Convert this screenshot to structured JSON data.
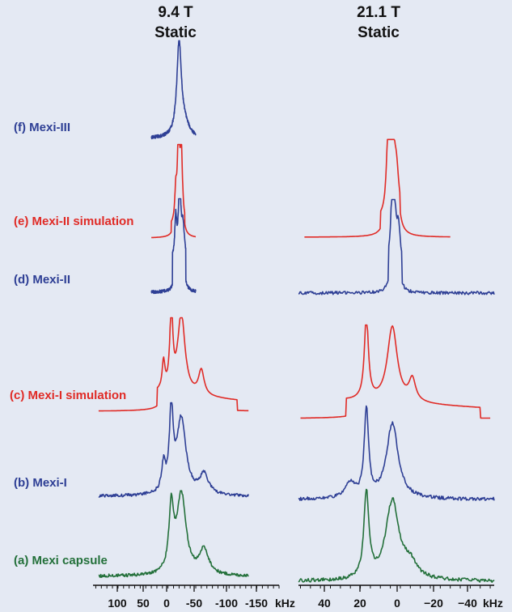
{
  "column_titles": [
    {
      "line1": "9.4 T",
      "line2": "Static"
    },
    {
      "line1": "21.1 T",
      "line2": "Static"
    }
  ],
  "axis_unit": "kHz",
  "colors": {
    "blue": "#2e3f95",
    "red": "#e02b26",
    "green": "#23703a",
    "background": "#e4e9f3"
  },
  "chart_data": [
    {
      "type": "line",
      "title": "9.4 T Static",
      "xlabel": "kHz",
      "x_reversed": true,
      "xlim": [
        145,
        -190
      ],
      "xticks": [
        100,
        50,
        0,
        -50,
        -100,
        -150
      ],
      "tick_labels": [
        "100",
        "50",
        "0",
        "-50",
        "-100",
        "-150"
      ],
      "series": [
        {
          "name": "(f) Mexi-III",
          "color": "blue",
          "x_range": [
            40,
            -40
          ],
          "peaks": [
            {
              "center": -10,
              "height": 1.0,
              "width": 5
            }
          ],
          "shoulders": [
            {
              "center": -20,
              "height": 0.12,
              "width": 10
            }
          ]
        },
        {
          "name": "(e) Mexi-II simulation",
          "color": "red",
          "x_range": [
            40,
            -40
          ],
          "plateau": {
            "from": 4,
            "to": -20,
            "height": 0.12
          },
          "peaks": [
            {
              "center": -9,
              "height": 0.98,
              "width": 2.5
            },
            {
              "center": -14,
              "height": 0.78,
              "width": 2.5
            },
            {
              "center": -4,
              "height": 0.32,
              "width": 2
            }
          ]
        },
        {
          "name": "(d) Mexi-II",
          "color": "blue",
          "x_range": [
            40,
            -40
          ],
          "plateau": {
            "from": 2,
            "to": -22,
            "height": 0.35
          },
          "peaks": [
            {
              "center": -11,
              "height": 0.88,
              "width": 2.5
            },
            {
              "center": -4,
              "height": 0.45,
              "width": 2
            },
            {
              "center": -17,
              "height": 0.35,
              "width": 3
            }
          ]
        },
        {
          "name": "(c) Mexi-I simulation",
          "color": "red",
          "x_range": [
            135,
            -135
          ],
          "edges": {
            "left": 30,
            "right": -115
          },
          "peaks": [
            {
              "center": 4,
              "height": 0.95,
              "width": 3
            },
            {
              "center": -14,
              "height": 0.9,
              "width": 8
            },
            {
              "center": 18,
              "height": 0.32,
              "width": 3
            },
            {
              "center": -50,
              "height": 0.28,
              "width": 6
            }
          ]
        },
        {
          "name": "(b) Mexi-I",
          "color": "blue",
          "x_range": [
            135,
            -135
          ],
          "peaks": [
            {
              "center": 4,
              "height": 0.92,
              "width": 4
            },
            {
              "center": -14,
              "height": 0.85,
              "width": 10
            },
            {
              "center": 18,
              "height": 0.3,
              "width": 4
            },
            {
              "center": -55,
              "height": 0.22,
              "width": 10
            }
          ]
        },
        {
          "name": "(a) Mexi capsule",
          "color": "green",
          "x_range": [
            135,
            -135
          ],
          "peaks": [
            {
              "center": 4,
              "height": 0.7,
              "width": 5
            },
            {
              "center": -14,
              "height": 0.9,
              "width": 10
            },
            {
              "center": -55,
              "height": 0.28,
              "width": 10
            }
          ]
        }
      ]
    },
    {
      "type": "line",
      "title": "21.1 T Static",
      "xlabel": "kHz",
      "x_reversed": true,
      "xlim": [
        51,
        -47
      ],
      "xticks": [
        40,
        20,
        0,
        -20,
        -40
      ],
      "tick_labels": [
        "40",
        "20",
        "0",
        "−20",
        "−40"
      ],
      "series": [
        {
          "name": "(e) Mexi-II simulation",
          "color": "red",
          "x_range": [
            48,
            -25
          ],
          "plateau": {
            "from": 10,
            "to": 0,
            "height": 0.18
          },
          "peaks": [
            {
              "center": 6,
              "height": 0.9,
              "width": 1
            },
            {
              "center": 4,
              "height": 0.95,
              "width": 1
            },
            {
              "center": 2,
              "height": 0.5,
              "width": 1.5
            }
          ]
        },
        {
          "name": "(d) Mexi-II",
          "color": "blue",
          "x_range": [
            51,
            -47
          ],
          "plateau": {
            "from": 6,
            "to": -1,
            "height": 0.32
          },
          "peaks": [
            {
              "center": 4,
              "height": 0.82,
              "width": 0.8
            },
            {
              "center": 3,
              "height": 0.6,
              "width": 0.8
            },
            {
              "center": 1,
              "height": 0.4,
              "width": 1
            }
          ]
        },
        {
          "name": "(c) Mexi-I simulation",
          "color": "red",
          "x_range": [
            50,
            -45
          ],
          "edges": {
            "left": 27,
            "right": -40
          },
          "peaks": [
            {
              "center": 17,
              "height": 0.95,
              "width": 1.2
            },
            {
              "center": 4,
              "height": 0.85,
              "width": 3
            },
            {
              "center": -6,
              "height": 0.25,
              "width": 2
            }
          ]
        },
        {
          "name": "(b) Mexi-I",
          "color": "blue",
          "x_range": [
            51,
            -47
          ],
          "peaks": [
            {
              "center": 17,
              "height": 0.9,
              "width": 1.3
            },
            {
              "center": 4,
              "height": 0.78,
              "width": 3.5
            },
            {
              "center": 25,
              "height": 0.15,
              "width": 3
            }
          ]
        },
        {
          "name": "(a) Mexi capsule",
          "color": "green",
          "x_range": [
            51,
            -47
          ],
          "peaks": [
            {
              "center": 17,
              "height": 0.85,
              "width": 1.5
            },
            {
              "center": 4,
              "height": 0.78,
              "width": 4
            },
            {
              "center": -5,
              "height": 0.15,
              "width": 4
            }
          ]
        }
      ]
    }
  ]
}
